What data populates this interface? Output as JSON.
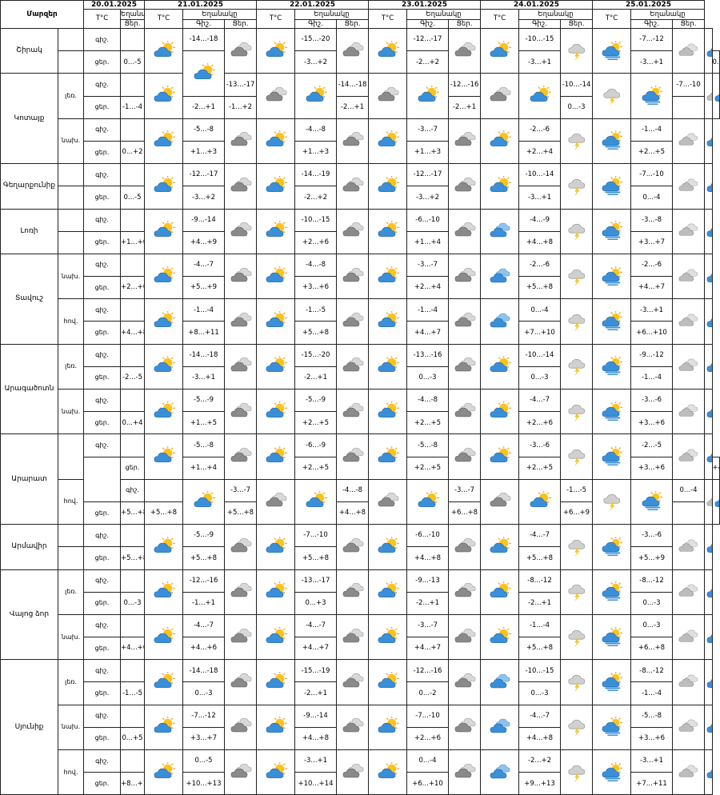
{
  "header": {
    "region_label": "Մարզեր",
    "temp_label": "T°C",
    "weather_label": "Եղանակը",
    "night": "Գիշ.",
    "day": "Ցեր.",
    "night_lower": "գիշ.",
    "day_lower": "ցեր."
  },
  "dates": [
    "20.01.2025",
    "21.01.2025",
    "22.01.2025",
    "23.01.2025",
    "24.01.2025",
    "25.01.2025"
  ],
  "rows": [
    {
      "region": "Շիրակ",
      "span": 2,
      "sub": "",
      "tp": "գիշ.",
      "d0": {
        "t": "",
        "ic": "sun-cloud"
      },
      "d": [
        [
          "-14...-18",
          "cloud-gray",
          "sun-cloud"
        ],
        [
          "-15...-20",
          "cloud-gray",
          "sun-cloud"
        ],
        [
          "-12...-17",
          "cloud-gray",
          "sun-cloud"
        ],
        [
          "-10...-15",
          "cloud-storm",
          "sun-cloud-rain"
        ],
        [
          "-7...-12",
          "cloud-light",
          "sun-cloud"
        ]
      ]
    },
    {
      "region": "",
      "span": 0,
      "sub": "",
      "tp": "ցեր.",
      "d0": {
        "t": "0...-5",
        "ic": "sun-cloud"
      },
      "d": [
        [
          "-3...+2",
          "",
          ""
        ],
        [
          "-2...+2",
          "",
          ""
        ],
        [
          "-3...+1",
          "",
          ""
        ],
        [
          "-3...+1",
          "",
          ""
        ],
        [
          "0...-4",
          "",
          ""
        ]
      ]
    },
    {
      "region": "Կոտայք",
      "span": 4,
      "sub": "լեռ.",
      "tp": "գիշ.",
      "d0": {
        "t": "",
        "ic": "sun-cloud"
      },
      "d": [
        [
          "-13...-17",
          "cloud-gray",
          "sun-cloud"
        ],
        [
          "-14...-18",
          "cloud-gray",
          "sun-cloud"
        ],
        [
          "-12...-16",
          "cloud-gray",
          "sun-cloud"
        ],
        [
          "-10...-14",
          "cloud-storm",
          "sun-cloud-rain"
        ],
        [
          "-7...-10",
          "cloud-light",
          "sun-cloud"
        ]
      ]
    },
    {
      "region": "",
      "span": 0,
      "sub": "",
      "tp": "ցեր.",
      "d0": {
        "t": "-1...-4",
        "ic": ""
      },
      "d": [
        [
          "-2...+1",
          "",
          ""
        ],
        [
          "-1...+2",
          "",
          ""
        ],
        [
          "-2...+1",
          "",
          ""
        ],
        [
          "-2...+1",
          "",
          ""
        ],
        [
          "0...-3",
          "",
          ""
        ]
      ]
    },
    {
      "region": "",
      "span": 0,
      "sub": "նախ.",
      "tp": "գիշ.",
      "d0": {
        "t": "",
        "ic": "sun-cloud"
      },
      "d": [
        [
          "-5...-8",
          "cloud-gray",
          "sun-cloud"
        ],
        [
          "-4...-8",
          "cloud-gray",
          "sun-cloud"
        ],
        [
          "-3...-7",
          "cloud-gray",
          "sun-cloud"
        ],
        [
          "-2...-6",
          "cloud-storm",
          "sun-cloud-rain"
        ],
        [
          "-1...-4",
          "cloud-light",
          "sun-cloud"
        ]
      ]
    },
    {
      "region": "",
      "span": 0,
      "sub": "",
      "tp": "ցեր.",
      "d0": {
        "t": "0...+2",
        "ic": ""
      },
      "d": [
        [
          "+1...+3",
          "",
          ""
        ],
        [
          "+1...+3",
          "",
          ""
        ],
        [
          "+1...+3",
          "",
          ""
        ],
        [
          "+2...+4",
          "",
          ""
        ],
        [
          "+2...+5",
          "",
          ""
        ]
      ]
    },
    {
      "region": "Գեղարքունիք",
      "span": 2,
      "sub": "",
      "tp": "գիշ.",
      "d0": {
        "t": "",
        "ic": "sun-cloud"
      },
      "d": [
        [
          "-12...-17",
          "cloud-gray",
          "sun-cloud"
        ],
        [
          "-14...-19",
          "cloud-gray",
          "sun-cloud"
        ],
        [
          "-12...-17",
          "cloud-gray",
          "sun-cloud"
        ],
        [
          "-10...-14",
          "cloud-storm",
          "sun-cloud-rain"
        ],
        [
          "-7...-10",
          "cloud-light",
          "sun-cloud"
        ]
      ]
    },
    {
      "region": "",
      "span": 0,
      "sub": "",
      "tp": "ցեր.",
      "d0": {
        "t": "0...-5",
        "ic": ""
      },
      "d": [
        [
          "-3...+2",
          "",
          ""
        ],
        [
          "-2...+2",
          "",
          ""
        ],
        [
          "-3...+2",
          "",
          ""
        ],
        [
          "-3...+1",
          "",
          ""
        ],
        [
          "0...-4",
          "",
          ""
        ]
      ]
    },
    {
      "region": "Լոռի",
      "span": 2,
      "sub": "",
      "tp": "գիշ.",
      "d0": {
        "t": "",
        "ic": "sun-cloud"
      },
      "d": [
        [
          "-9...-14",
          "cloud-gray",
          "sun-cloud"
        ],
        [
          "-10...-15",
          "cloud-gray",
          "sun-cloud"
        ],
        [
          "-6...-10",
          "cloud-gray",
          "cloud-blue"
        ],
        [
          "-4...-9",
          "cloud-storm",
          "sun-cloud-rain"
        ],
        [
          "-3...-8",
          "cloud-light",
          "sun-cloud"
        ]
      ]
    },
    {
      "region": "",
      "span": 0,
      "sub": "",
      "tp": "ցեր.",
      "d0": {
        "t": "+1...+6",
        "ic": ""
      },
      "d": [
        [
          "+4...+9",
          "",
          ""
        ],
        [
          "+2...+6",
          "",
          ""
        ],
        [
          "+1...+4",
          "",
          ""
        ],
        [
          "+4...+8",
          "",
          ""
        ],
        [
          "+3...+7",
          "",
          ""
        ]
      ]
    },
    {
      "region": "Տավուշ",
      "span": 4,
      "sub": "նախ.",
      "tp": "գիշ.",
      "d0": {
        "t": "",
        "ic": "sun-cloud"
      },
      "d": [
        [
          "-4...-7",
          "cloud-gray",
          "sun-cloud"
        ],
        [
          "-4...-8",
          "cloud-gray",
          "sun-cloud"
        ],
        [
          "-3...-7",
          "cloud-gray",
          "cloud-blue"
        ],
        [
          "-2...-6",
          "cloud-storm",
          "sun-cloud-rain"
        ],
        [
          "-2...-6",
          "cloud-light",
          "sun-cloud"
        ]
      ]
    },
    {
      "region": "",
      "span": 0,
      "sub": "",
      "tp": "ցեր.",
      "d0": {
        "t": "+2...+6",
        "ic": ""
      },
      "d": [
        [
          "+5...+9",
          "",
          ""
        ],
        [
          "+3...+6",
          "",
          ""
        ],
        [
          "+2...+4",
          "",
          ""
        ],
        [
          "+5...+8",
          "",
          ""
        ],
        [
          "+4...+7",
          "",
          ""
        ]
      ]
    },
    {
      "region": "",
      "span": 0,
      "sub": "հով.",
      "tp": "գիշ.",
      "d0": {
        "t": "",
        "ic": "sun-cloud"
      },
      "d": [
        [
          "-1...-4",
          "cloud-gray",
          "sun-cloud"
        ],
        [
          "-1...-5",
          "cloud-gray",
          "sun-cloud"
        ],
        [
          "-1...-4",
          "cloud-gray",
          "cloud-blue"
        ],
        [
          "0...-4",
          "cloud-storm",
          "sun-cloud-rain"
        ],
        [
          "-3...+1",
          "cloud-light",
          "sun-cloud"
        ]
      ]
    },
    {
      "region": "",
      "span": 0,
      "sub": "",
      "tp": "ցեր.",
      "d0": {
        "t": "+4...+8",
        "ic": ""
      },
      "d": [
        [
          "+8...+11",
          "",
          ""
        ],
        [
          "+5...+8",
          "",
          ""
        ],
        [
          "+4...+7",
          "",
          ""
        ],
        [
          "+7...+10",
          "",
          ""
        ],
        [
          "+6...+10",
          "",
          ""
        ]
      ]
    },
    {
      "region": "Արագածոտն",
      "span": 4,
      "sub": "լեռ.",
      "tp": "գիշ.",
      "d0": {
        "t": "",
        "ic": "sun-cloud"
      },
      "d": [
        [
          "-14...-18",
          "cloud-gray",
          "sun-cloud"
        ],
        [
          "-15...-20",
          "cloud-gray",
          "sun-cloud"
        ],
        [
          "-13...-16",
          "cloud-gray",
          "sun-cloud"
        ],
        [
          "-10...-14",
          "cloud-storm",
          "sun-cloud-rain"
        ],
        [
          "-9...-12",
          "cloud-light",
          "sun-cloud"
        ]
      ]
    },
    {
      "region": "",
      "span": 0,
      "sub": "",
      "tp": "ցեր.",
      "d0": {
        "t": "-2...-5",
        "ic": ""
      },
      "d": [
        [
          "-3...+1",
          "",
          ""
        ],
        [
          "-2...+1",
          "",
          ""
        ],
        [
          "0...-3",
          "",
          ""
        ],
        [
          "0...-3",
          "",
          ""
        ],
        [
          "-1...-4",
          "",
          ""
        ]
      ]
    },
    {
      "region": "",
      "span": 0,
      "sub": "նախ.",
      "tp": "գիշ.",
      "d0": {
        "t": "",
        "ic": "sun-cloud"
      },
      "d": [
        [
          "-5...-9",
          "cloud-gray",
          "sun-cloud"
        ],
        [
          "-5...-9",
          "cloud-gray",
          "sun-cloud"
        ],
        [
          "-4...-8",
          "cloud-gray",
          "sun-cloud"
        ],
        [
          "-4...-7",
          "cloud-storm",
          "sun-cloud-rain"
        ],
        [
          "-3...-6",
          "cloud-light",
          "sun-cloud"
        ]
      ]
    },
    {
      "region": "",
      "span": 0,
      "sub": "",
      "tp": "ցեր.",
      "d0": {
        "t": "0...+4",
        "ic": ""
      },
      "d": [
        [
          "+1...+5",
          "",
          ""
        ],
        [
          "+2...+5",
          "",
          ""
        ],
        [
          "+2...+5",
          "",
          ""
        ],
        [
          "+2...+6",
          "",
          ""
        ],
        [
          "+3...+6",
          "",
          ""
        ]
      ]
    },
    {
      "region": "Արարատ",
      "span": 4,
      "sub": "",
      "tp": "գիշ.",
      "d0": {
        "t": "",
        "ic": "sun-cloud"
      },
      "d": [
        [
          "-5...-8",
          "cloud-gray",
          "sun-cloud"
        ],
        [
          "-6...-9",
          "cloud-gray",
          "sun-cloud"
        ],
        [
          "-5...-8",
          "cloud-gray",
          "sun-cloud"
        ],
        [
          "-3...-6",
          "cloud-storm",
          "sun-cloud-rain"
        ],
        [
          "-2...-5",
          "cloud-light",
          "sun-cloud"
        ]
      ]
    },
    {
      "region": "",
      "span": 0,
      "sub": "",
      "tp": "ցեր.",
      "d0": {
        "t": "+1...+4",
        "ic": ""
      },
      "d": [
        [
          "+2...+5",
          "",
          ""
        ],
        [
          "+2...+5",
          "",
          ""
        ],
        [
          "+2...+5",
          "",
          ""
        ],
        [
          "+3...+6",
          "",
          ""
        ],
        [
          "+4...+6",
          "",
          ""
        ]
      ]
    },
    {
      "region": "",
      "span": 0,
      "sub": "հով.",
      "tp": "գիշ.",
      "d0": {
        "t": "",
        "ic": "sun-cloud"
      },
      "d": [
        [
          "-3...-7",
          "cloud-gray",
          "sun-cloud"
        ],
        [
          "-4...-8",
          "cloud-gray",
          "sun-cloud"
        ],
        [
          "-3...-7",
          "cloud-gray",
          "sun-cloud"
        ],
        [
          "-1...-5",
          "cloud-storm",
          "sun-cloud-rain"
        ],
        [
          "0...-4",
          "cloud-light",
          "sun-cloud"
        ]
      ]
    },
    {
      "region": "",
      "span": 0,
      "sub": "",
      "tp": "ցեր.",
      "d0": {
        "t": "+5...+8",
        "ic": ""
      },
      "d": [
        [
          "+5...+8",
          "",
          ""
        ],
        [
          "+5...+8",
          "",
          ""
        ],
        [
          "+4...+8",
          "",
          ""
        ],
        [
          "+6...+8",
          "",
          ""
        ],
        [
          "+6...+9",
          "",
          ""
        ]
      ]
    },
    {
      "region": "Արմավիր",
      "span": 2,
      "sub": "",
      "tp": "գիշ.",
      "d0": {
        "t": "",
        "ic": "sun-cloud"
      },
      "d": [
        [
          "-5...-9",
          "cloud-gray",
          "sun-cloud"
        ],
        [
          "-7...-10",
          "cloud-gray",
          "sun-cloud"
        ],
        [
          "-6...-10",
          "cloud-gray",
          "sun-cloud"
        ],
        [
          "-4...-7",
          "cloud-storm",
          "sun-cloud-rain"
        ],
        [
          "-3...-6",
          "cloud-light",
          "sun-cloud"
        ]
      ]
    },
    {
      "region": "",
      "span": 0,
      "sub": "",
      "tp": "ցեր.",
      "d0": {
        "t": "+5...+8",
        "ic": ""
      },
      "d": [
        [
          "+5...+8",
          "",
          ""
        ],
        [
          "+5...+8",
          "",
          ""
        ],
        [
          "+4...+8",
          "",
          ""
        ],
        [
          "+5...+8",
          "",
          ""
        ],
        [
          "+5...+9",
          "",
          ""
        ]
      ]
    },
    {
      "region": "Վայոց ձոր",
      "span": 4,
      "sub": "լեռ.",
      "tp": "գիշ.",
      "d0": {
        "t": "",
        "ic": "sun-cloud"
      },
      "d": [
        [
          "-12...-16",
          "cloud-gray",
          "sun-cloud"
        ],
        [
          "-13...-17",
          "cloud-gray",
          "sun-cloud"
        ],
        [
          "-9...-13",
          "cloud-gray",
          "sun-cloud"
        ],
        [
          "-8...-12",
          "cloud-storm",
          "sun-cloud-rain"
        ],
        [
          "-8...-12",
          "cloud-light",
          "sun-cloud"
        ]
      ]
    },
    {
      "region": "",
      "span": 0,
      "sub": "",
      "tp": "ցեր.",
      "d0": {
        "t": "0...-3",
        "ic": ""
      },
      "d": [
        [
          "-1...+1",
          "",
          ""
        ],
        [
          "0...+3",
          "",
          ""
        ],
        [
          "-2...+1",
          "",
          ""
        ],
        [
          "-2...+1",
          "",
          ""
        ],
        [
          "0...-3",
          "",
          ""
        ]
      ]
    },
    {
      "region": "",
      "span": 0,
      "sub": "նախ.",
      "tp": "գիշ.",
      "d0": {
        "t": "",
        "ic": "sun-cloud"
      },
      "d": [
        [
          "-4...-7",
          "cloud-gray",
          "sun-cloud"
        ],
        [
          "-4...-7",
          "cloud-gray",
          "sun-cloud"
        ],
        [
          "-3...-7",
          "cloud-gray",
          "sun-cloud"
        ],
        [
          "-1...-4",
          "cloud-storm",
          "sun-cloud-rain"
        ],
        [
          "0...-3",
          "cloud-light",
          "sun-cloud"
        ]
      ]
    },
    {
      "region": "",
      "span": 0,
      "sub": "",
      "tp": "ցեր.",
      "d0": {
        "t": "+4...+6",
        "ic": ""
      },
      "d": [
        [
          "+4...+6",
          "",
          ""
        ],
        [
          "+4...+7",
          "",
          ""
        ],
        [
          "+4...+7",
          "",
          ""
        ],
        [
          "+5...+8",
          "",
          ""
        ],
        [
          "+6...+8",
          "",
          ""
        ]
      ]
    },
    {
      "region": "Սյունիք",
      "span": 6,
      "sub": "լեռ.",
      "tp": "գիշ.",
      "d0": {
        "t": "",
        "ic": "sun-cloud"
      },
      "d": [
        [
          "-14...-18",
          "cloud-gray",
          "sun-cloud"
        ],
        [
          "-15...-19",
          "cloud-gray",
          "sun-cloud"
        ],
        [
          "-12...-16",
          "cloud-gray",
          "cloud-blue"
        ],
        [
          "-10...-15",
          "cloud-storm",
          "sun-cloud-rain"
        ],
        [
          "-8...-12",
          "cloud-light",
          "sun-cloud"
        ]
      ]
    },
    {
      "region": "",
      "span": 0,
      "sub": "",
      "tp": "ցեր.",
      "d0": {
        "t": "-1...-5",
        "ic": ""
      },
      "d": [
        [
          "0...-3",
          "",
          ""
        ],
        [
          "-2...+1",
          "",
          ""
        ],
        [
          "0...-2",
          "",
          ""
        ],
        [
          "0...-3",
          "",
          ""
        ],
        [
          "-1...-4",
          "",
          ""
        ]
      ]
    },
    {
      "region": "",
      "span": 0,
      "sub": "նախ.",
      "tp": "գիշ.",
      "d0": {
        "t": "",
        "ic": "sun-cloud"
      },
      "d": [
        [
          "-7...-12",
          "cloud-gray",
          "sun-cloud"
        ],
        [
          "-9...-14",
          "cloud-gray",
          "sun-cloud"
        ],
        [
          "-7...-10",
          "cloud-gray",
          "cloud-blue"
        ],
        [
          "-4...-7",
          "cloud-storm",
          "sun-cloud-rain"
        ],
        [
          "-5...-8",
          "cloud-light",
          "sun-cloud"
        ]
      ]
    },
    {
      "region": "",
      "span": 0,
      "sub": "",
      "tp": "ցեր.",
      "d0": {
        "t": "0...+5",
        "ic": ""
      },
      "d": [
        [
          "+3...+7",
          "",
          ""
        ],
        [
          "+4...+8",
          "",
          ""
        ],
        [
          "+2...+6",
          "",
          ""
        ],
        [
          "+4...+8",
          "",
          ""
        ],
        [
          "+3...+6",
          "",
          ""
        ]
      ]
    },
    {
      "region": "",
      "span": 0,
      "sub": "հով.",
      "tp": "գիշ.",
      "d0": {
        "t": "",
        "ic": "sun-cloud"
      },
      "d": [
        [
          "0...-5",
          "cloud-gray",
          "sun-cloud"
        ],
        [
          "-3...+1",
          "cloud-gray",
          "sun-cloud"
        ],
        [
          "0...-4",
          "cloud-gray",
          "cloud-blue"
        ],
        [
          "-2...+2",
          "cloud-storm",
          "sun-cloud-rain"
        ],
        [
          "-3...+1",
          "cloud-light",
          "sun-cloud"
        ]
      ]
    },
    {
      "region": "",
      "span": 0,
      "sub": "",
      "tp": "ցեր.",
      "d0": {
        "t": "+8...+11",
        "ic": ""
      },
      "d": [
        [
          "+10...+13",
          "",
          ""
        ],
        [
          "+10...+14",
          "",
          ""
        ],
        [
          "+6...+10",
          "",
          ""
        ],
        [
          "+9...+13",
          "",
          ""
        ],
        [
          "+7...+11",
          "",
          ""
        ]
      ]
    }
  ]
}
